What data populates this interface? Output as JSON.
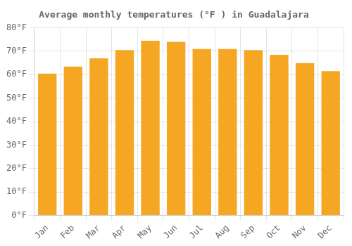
{
  "chart_data": {
    "type": "bar",
    "title": "Average monthly temperatures (°F ) in Guadalajara",
    "categories": [
      "Jan",
      "Feb",
      "Mar",
      "Apr",
      "May",
      "Jun",
      "Jul",
      "Aug",
      "Sep",
      "Oct",
      "Nov",
      "Dec"
    ],
    "values": [
      60.5,
      63.5,
      67.0,
      70.5,
      74.5,
      74.0,
      71.0,
      71.0,
      70.5,
      68.5,
      65.0,
      61.5
    ],
    "color": "#F5A623",
    "ylim": [
      0,
      80
    ],
    "yticks": [
      {
        "value": 0,
        "label": "0°F"
      },
      {
        "value": 10,
        "label": "10°F"
      },
      {
        "value": 20,
        "label": "20°F"
      },
      {
        "value": 30,
        "label": "30°F"
      },
      {
        "value": 40,
        "label": "40°F"
      },
      {
        "value": 50,
        "label": "50°F"
      },
      {
        "value": 60,
        "label": "60°F"
      },
      {
        "value": 70,
        "label": "70°F"
      },
      {
        "value": 80,
        "label": "80°F"
      }
    ],
    "grid": true
  }
}
